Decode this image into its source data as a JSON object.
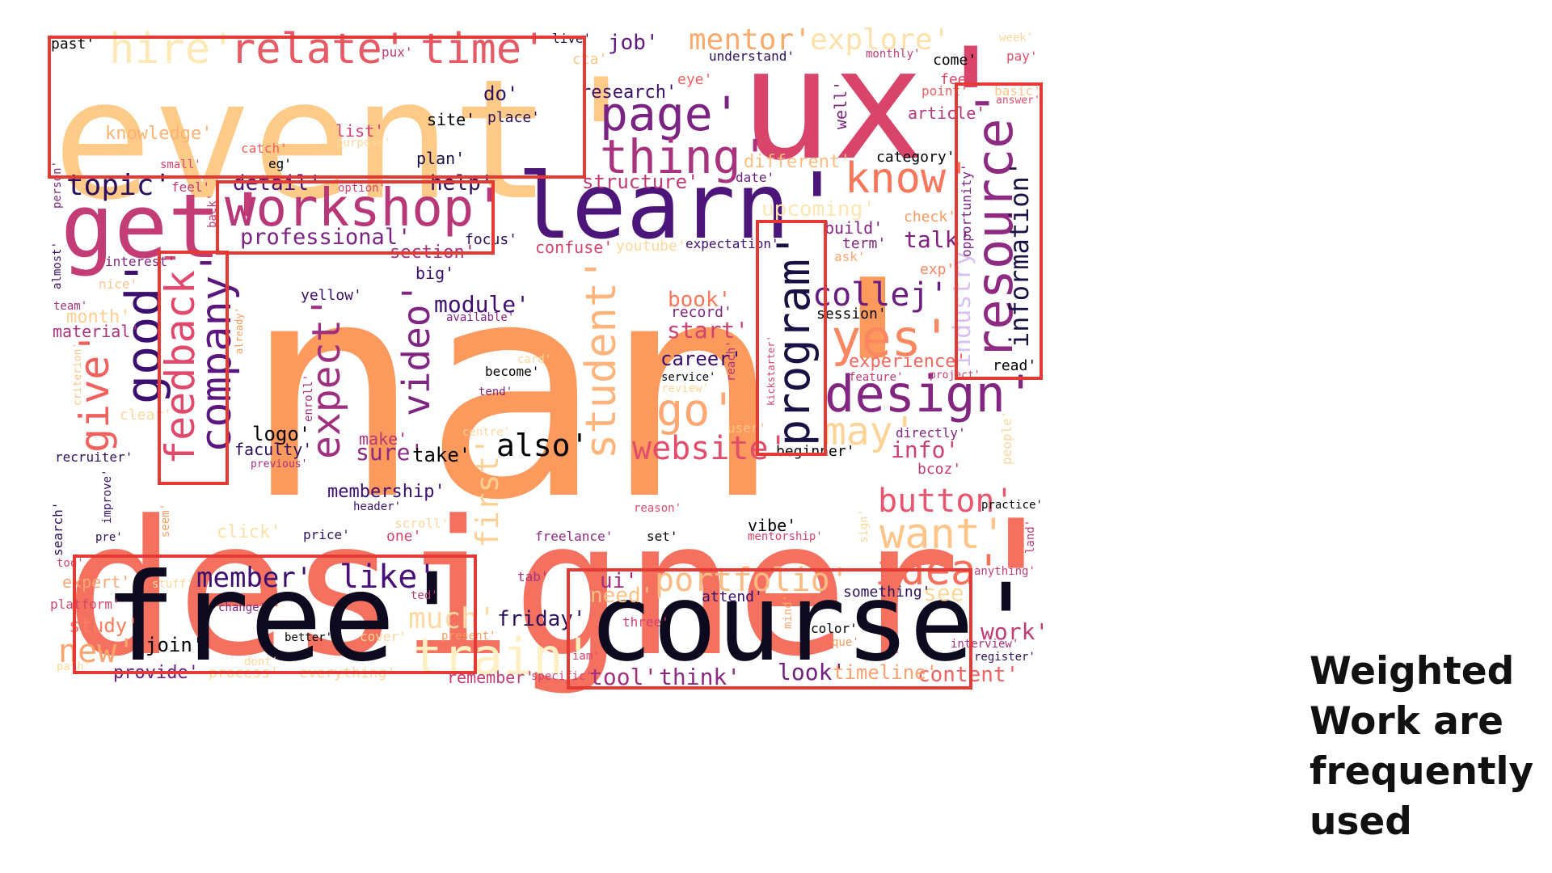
{
  "caption": [
    "Weighted",
    "Work are",
    "frequently",
    "used"
  ],
  "colors": {
    "box_outline": "#e53935",
    "caption_text": "#111111",
    "background": "#ffffff"
  },
  "highlighted_words": [
    "event'",
    "workshop'",
    "feedback'",
    "program'",
    "resource'",
    "free'",
    "course'"
  ],
  "word_cloud": [
    {
      "text": "nan'",
      "color": "#fb9a5c"
    },
    {
      "text": "designer'",
      "color": "#f4705f"
    },
    {
      "text": "event'",
      "color": "#fdca88"
    },
    {
      "text": "ux'",
      "color": "#d8446a"
    },
    {
      "text": "free'",
      "color": "#0d0a1f"
    },
    {
      "text": "course'",
      "color": "#0d0a1f"
    },
    {
      "text": "learn'",
      "color": "#4c157a"
    },
    {
      "text": "get'",
      "color": "#c43c75"
    },
    {
      "text": "workshop'",
      "color": "#b73779"
    },
    {
      "text": "relate'",
      "color": "#e65a65"
    },
    {
      "text": "time'",
      "color": "#e65a65"
    },
    {
      "text": "hire'",
      "color": "#fde9b6"
    },
    {
      "text": "page'",
      "color": "#7b2382"
    },
    {
      "text": "thing'",
      "color": "#a8327d"
    },
    {
      "text": "resource'",
      "color": "#8e2a81"
    },
    {
      "text": "information'",
      "color": "#1b1044"
    },
    {
      "text": "program'",
      "color": "#1b1044"
    },
    {
      "text": "good'",
      "color": "#3b0f70"
    },
    {
      "text": "company'",
      "color": "#5c167f"
    },
    {
      "text": "feedback'",
      "color": "#e0486c"
    },
    {
      "text": "give'",
      "color": "#f0605d"
    },
    {
      "text": "expect'",
      "color": "#9f2f7f"
    },
    {
      "text": "video'",
      "color": "#7f2582"
    },
    {
      "text": "student'",
      "color": "#feb47b"
    },
    {
      "text": "design'",
      "color": "#822681"
    },
    {
      "text": "yes'",
      "color": "#fb8761"
    },
    {
      "text": "know'",
      "color": "#f8765c"
    },
    {
      "text": "collej'",
      "color": "#6a1c81"
    },
    {
      "text": "go'",
      "color": "#fea772"
    },
    {
      "text": "may'",
      "color": "#fed395"
    },
    {
      "text": "website'",
      "color": "#e14d6a"
    },
    {
      "text": "also'",
      "color": "#000004"
    },
    {
      "text": "first'",
      "color": "#fecf92"
    },
    {
      "text": "button'",
      "color": "#e8566e"
    },
    {
      "text": "want'",
      "color": "#fec488"
    },
    {
      "text": "idea'",
      "color": "#f7705c"
    },
    {
      "text": "portfolio'",
      "color": "#febb81"
    },
    {
      "text": "train'",
      "color": "#fef0c2"
    },
    {
      "text": "member'",
      "color": "#3b0f70"
    },
    {
      "text": "like'",
      "color": "#4a1079"
    },
    {
      "text": "mentor'",
      "color": "#fcaa6b"
    },
    {
      "text": "explore'",
      "color": "#fee1a8"
    },
    {
      "text": "topic'",
      "color": "#2a0f5c"
    },
    {
      "text": "professional'",
      "color": "#7b2382"
    },
    {
      "text": "detail'",
      "color": "#4a1079"
    },
    {
      "text": "help'",
      "color": "#2a0f5c"
    },
    {
      "text": "module'",
      "color": "#400f74"
    },
    {
      "text": "industry'",
      "color": "#d8c0f0"
    },
    {
      "text": "much'",
      "color": "#fed9a1"
    },
    {
      "text": "new'",
      "color": "#fba46d"
    },
    {
      "text": "study'",
      "color": "#f97d5e"
    },
    {
      "text": "talk'",
      "color": "#821f80"
    },
    {
      "text": "content'",
      "color": "#ef6360"
    },
    {
      "text": "work'",
      "color": "#c23b75"
    },
    {
      "text": "look'",
      "color": "#721f81"
    },
    {
      "text": "think'",
      "color": "#8c2981"
    },
    {
      "text": "tool'",
      "color": "#a3307e"
    },
    {
      "text": "timeline'",
      "color": "#fea16e"
    },
    {
      "text": "friday'",
      "color": "#2c115f"
    },
    {
      "text": "ui'",
      "color": "#a3307e"
    },
    {
      "text": "need'",
      "color": "#fdbf82"
    },
    {
      "text": "see'",
      "color": "#fed79b"
    },
    {
      "text": "info'",
      "color": "#cc3f71"
    },
    {
      "text": "start'",
      "color": "#d3436e"
    },
    {
      "text": "book'",
      "color": "#f8765c"
    },
    {
      "text": "career'",
      "color": "#3b0f70"
    },
    {
      "text": "experience'",
      "color": "#f3675e"
    },
    {
      "text": "different'",
      "color": "#fdbd80"
    },
    {
      "text": "upcoming'",
      "color": "#fde6b1"
    },
    {
      "text": "structure'",
      "color": "#c23b75"
    },
    {
      "text": "job'",
      "color": "#5f187f"
    },
    {
      "text": "month'",
      "color": "#fece90"
    },
    {
      "text": "material'",
      "color": "#a8327d"
    },
    {
      "text": "logo'",
      "color": "#000004"
    },
    {
      "text": "faculty'",
      "color": "#2c115f"
    },
    {
      "text": "sure'",
      "color": "#8c2981"
    },
    {
      "text": "make'",
      "color": "#b73779"
    },
    {
      "text": "take'",
      "color": "#000004"
    },
    {
      "text": "membership'",
      "color": "#3b0f70"
    },
    {
      "text": "click'",
      "color": "#fee1a8"
    },
    {
      "text": "expert'",
      "color": "#fea772"
    },
    {
      "text": "join'",
      "color": "#000004"
    },
    {
      "text": "provide'",
      "color": "#6a1c81"
    },
    {
      "text": "knowledge'",
      "color": "#fdb272"
    },
    {
      "text": "site'",
      "color": "#000004"
    },
    {
      "text": "place'",
      "color": "#2a0f5c"
    },
    {
      "text": "do'",
      "color": "#2c115f"
    },
    {
      "text": "research'",
      "color": "#3b0f70"
    },
    {
      "text": "list'",
      "color": "#d3436e"
    },
    {
      "text": "plan'",
      "color": "#1b1044"
    },
    {
      "text": "catch'",
      "color": "#f0605d"
    },
    {
      "text": "past'",
      "color": "#000004"
    },
    {
      "text": "pux'",
      "color": "#c23b75"
    },
    {
      "text": "live'",
      "color": "#1b1044"
    },
    {
      "text": "cta'",
      "color": "#fec488"
    },
    {
      "text": "understand'",
      "color": "#2a0f5c"
    },
    {
      "text": "eye'",
      "color": "#ef6360"
    },
    {
      "text": "come'",
      "color": "#000004"
    },
    {
      "text": "fee'",
      "color": "#d8446a"
    },
    {
      "text": "point'",
      "color": "#f0605d"
    },
    {
      "text": "article'",
      "color": "#b73779"
    },
    {
      "text": "pay'",
      "color": "#e14d6a"
    },
    {
      "text": "week'",
      "color": "#fed79b"
    },
    {
      "text": "monthly'",
      "color": "#c23b75"
    },
    {
      "text": "basic'",
      "color": "#fec488"
    },
    {
      "text": "answer'",
      "color": "#e14d6a"
    },
    {
      "text": "category'",
      "color": "#000004"
    },
    {
      "text": "date'",
      "color": "#6a1c81"
    },
    {
      "text": "check'",
      "color": "#fb9a5c"
    },
    {
      "text": "build'",
      "color": "#822681"
    },
    {
      "text": "term'",
      "color": "#822681"
    },
    {
      "text": "ask'",
      "color": "#fea772"
    },
    {
      "text": "exp'",
      "color": "#fb8761"
    },
    {
      "text": "opportunity'",
      "color": "#7b2382"
    },
    {
      "text": "well'",
      "color": "#7b2382"
    },
    {
      "text": "session'",
      "color": "#000004"
    },
    {
      "text": "feature'",
      "color": "#c23b75"
    },
    {
      "text": "project'",
      "color": "#c23b75"
    },
    {
      "text": "read'",
      "color": "#000004"
    },
    {
      "text": "directly'",
      "color": "#822681"
    },
    {
      "text": "bcoz'",
      "color": "#c23b75"
    },
    {
      "text": "people'",
      "color": "#fed79b"
    },
    {
      "text": "practice'",
      "color": "#000004"
    },
    {
      "text": "land'",
      "color": "#c23b75"
    },
    {
      "text": "anything'",
      "color": "#c23b75"
    },
    {
      "text": "interview'",
      "color": "#a8327d"
    },
    {
      "text": "register'",
      "color": "#2c115f"
    },
    {
      "text": "something'",
      "color": "#2c115f"
    },
    {
      "text": "color'",
      "color": "#000004"
    },
    {
      "text": "que'",
      "color": "#fb9a5c"
    },
    {
      "text": "attend'",
      "color": "#3b0f70"
    },
    {
      "text": "three'",
      "color": "#d3436e"
    },
    {
      "text": "mind'",
      "color": "#fea772"
    },
    {
      "text": "iam'",
      "color": "#d8446a"
    },
    {
      "text": "specific'",
      "color": "#d3436e"
    },
    {
      "text": "remember'",
      "color": "#c23b75"
    },
    {
      "text": "tab'",
      "color": "#a8327d"
    },
    {
      "text": "vibe'",
      "color": "#000004"
    },
    {
      "text": "mentorship'",
      "color": "#d8446a"
    },
    {
      "text": "set'",
      "color": "#000004"
    },
    {
      "text": "freelance'",
      "color": "#8c2981"
    },
    {
      "text": "reason'",
      "color": "#e14d6a"
    },
    {
      "text": "one'",
      "color": "#d8446a"
    },
    {
      "text": "scroll'",
      "color": "#fed79b"
    },
    {
      "text": "price'",
      "color": "#2c115f"
    },
    {
      "text": "header'",
      "color": "#3b0f70"
    },
    {
      "text": "sign'",
      "color": "#fed79b"
    },
    {
      "text": "present'",
      "color": "#fb9a5c"
    },
    {
      "text": "cover'",
      "color": "#fed79b"
    },
    {
      "text": "better'",
      "color": "#000004"
    },
    {
      "text": "ted'",
      "color": "#c23b75"
    },
    {
      "text": "change'",
      "color": "#822681"
    },
    {
      "text": "stuff'",
      "color": "#fed79b"
    },
    {
      "text": "platform'",
      "color": "#d8446a"
    },
    {
      "text": "too'",
      "color": "#d8446a"
    },
    {
      "text": "pre'",
      "color": "#2c115f"
    },
    {
      "text": "improve'",
      "color": "#3b0f70"
    },
    {
      "text": "seem'",
      "color": "#fb9a5c"
    },
    {
      "text": "search'",
      "color": "#2a0f5c"
    },
    {
      "text": "recruiter'",
      "color": "#2c115f"
    },
    {
      "text": "previous'",
      "color": "#a8327d"
    },
    {
      "text": "enroll'",
      "color": "#a8327d"
    },
    {
      "text": "centre'",
      "color": "#fed79b"
    },
    {
      "text": "user'",
      "color": "#fec488"
    },
    {
      "text": "become'",
      "color": "#000004"
    },
    {
      "text": "tend'",
      "color": "#822681"
    },
    {
      "text": "card'",
      "color": "#fed79b"
    },
    {
      "text": "service'",
      "color": "#000004"
    },
    {
      "text": "review'",
      "color": "#fed79b"
    },
    {
      "text": "reach'",
      "color": "#a8327d"
    },
    {
      "text": "kickstarter'",
      "color": "#d8446a"
    },
    {
      "text": "record'",
      "color": "#822681"
    },
    {
      "text": "beginner'",
      "color": "#000004"
    },
    {
      "text": "yellow'",
      "color": "#3b0f70"
    },
    {
      "text": "available'",
      "color": "#822681"
    },
    {
      "text": "big'",
      "color": "#3b0f70"
    },
    {
      "text": "section'",
      "color": "#a8327d"
    },
    {
      "text": "focus'",
      "color": "#2c115f"
    },
    {
      "text": "confuse'",
      "color": "#d8446a"
    },
    {
      "text": "youtube'",
      "color": "#fed79b"
    },
    {
      "text": "expectation'",
      "color": "#3b0f70"
    },
    {
      "text": "option'",
      "color": "#d8446a"
    },
    {
      "text": "feel'",
      "color": "#c23b75"
    },
    {
      "text": "back'",
      "color": "#c23b75"
    },
    {
      "text": "person'",
      "color": "#822681"
    },
    {
      "text": "interest'",
      "color": "#822681"
    },
    {
      "text": "almost'",
      "color": "#3b0f70"
    },
    {
      "text": "nice'",
      "color": "#fec488"
    },
    {
      "text": "team'",
      "color": "#a8327d"
    },
    {
      "text": "already'",
      "color": "#fb9a5c"
    },
    {
      "text": "criterion'",
      "color": "#fec488"
    },
    {
      "text": "clear'",
      "color": "#fed79b"
    },
    {
      "text": "small'",
      "color": "#d8446a"
    },
    {
      "text": "eg'",
      "color": "#000004"
    },
    {
      "text": "purpose'",
      "color": "#fed79b"
    },
    {
      "text": "dont'",
      "color": "#fed79b"
    },
    {
      "text": "process'",
      "color": "#fed79b"
    },
    {
      "text": "everything'",
      "color": "#fed79b"
    },
    {
      "text": "path'",
      "color": "#fed79b"
    }
  ]
}
